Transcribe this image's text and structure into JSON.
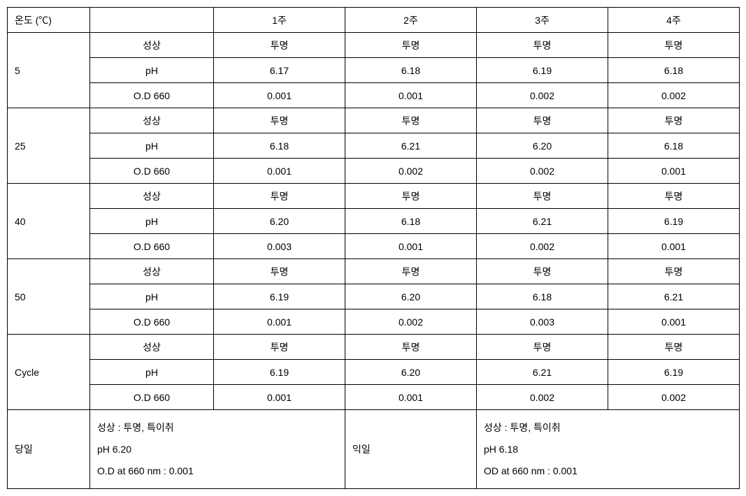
{
  "header": {
    "temp_label": "온도 (℃)",
    "blank": "",
    "week1": "1주",
    "week2": "2주",
    "week3": "3주",
    "week4": "4주"
  },
  "rows": {
    "temp5": {
      "label": "5",
      "property": {
        "name": "성상",
        "w1": "투명",
        "w2": "투명",
        "w3": "투명",
        "w4": "투명"
      },
      "ph": {
        "name": "pH",
        "w1": "6.17",
        "w2": "6.18",
        "w3": "6.19",
        "w4": "6.18"
      },
      "od": {
        "name": "O.D 660",
        "w1": "0.001",
        "w2": "0.001",
        "w3": "0.002",
        "w4": "0.002"
      }
    },
    "temp25": {
      "label": "25",
      "property": {
        "name": "성상",
        "w1": "투명",
        "w2": "투명",
        "w3": "투명",
        "w4": "투명"
      },
      "ph": {
        "name": "pH",
        "w1": "6.18",
        "w2": "6.21",
        "w3": "6.20",
        "w4": "6.18"
      },
      "od": {
        "name": "O.D 660",
        "w1": "0.001",
        "w2": "0.002",
        "w3": "0.002",
        "w4": "0.001"
      }
    },
    "temp40": {
      "label": "40",
      "property": {
        "name": "성상",
        "w1": "투명",
        "w2": "투명",
        "w3": "투명",
        "w4": "투명"
      },
      "ph": {
        "name": "pH",
        "w1": "6.20",
        "w2": "6.18",
        "w3": "6.21",
        "w4": "6.19"
      },
      "od": {
        "name": "O.D 660",
        "w1": "0.003",
        "w2": "0.001",
        "w3": "0.002",
        "w4": "0.001"
      }
    },
    "temp50": {
      "label": "50",
      "property": {
        "name": "성상",
        "w1": "투명",
        "w2": "투명",
        "w3": "투명",
        "w4": "투명"
      },
      "ph": {
        "name": "pH",
        "w1": "6.19",
        "w2": "6.20",
        "w3": "6.18",
        "w4": "6.21"
      },
      "od": {
        "name": "O.D 660",
        "w1": "0.001",
        "w2": "0.002",
        "w3": "0.003",
        "w4": "0.001"
      }
    },
    "cycle": {
      "label": "Cycle",
      "property": {
        "name": "성상",
        "w1": "투명",
        "w2": "투명",
        "w3": "투명",
        "w4": "투명"
      },
      "ph": {
        "name": "pH",
        "w1": "6.19",
        "w2": "6.20",
        "w3": "6.21",
        "w4": "6.19"
      },
      "od": {
        "name": "O.D 660",
        "w1": "0.001",
        "w2": "0.001",
        "w3": "0.002",
        "w4": "0.002"
      }
    }
  },
  "bottom": {
    "day_label": "당일",
    "left_line1": "성상 : 투명, 특이취",
    "left_line2": "pH 6.20",
    "left_line3": "O.D at 660 nm : 0.001",
    "nextday_label": "익일",
    "right_line1": "성상 : 투명, 특이취",
    "right_line2": "pH 6.18",
    "right_line3": "OD at 660 nm : 0.001"
  }
}
